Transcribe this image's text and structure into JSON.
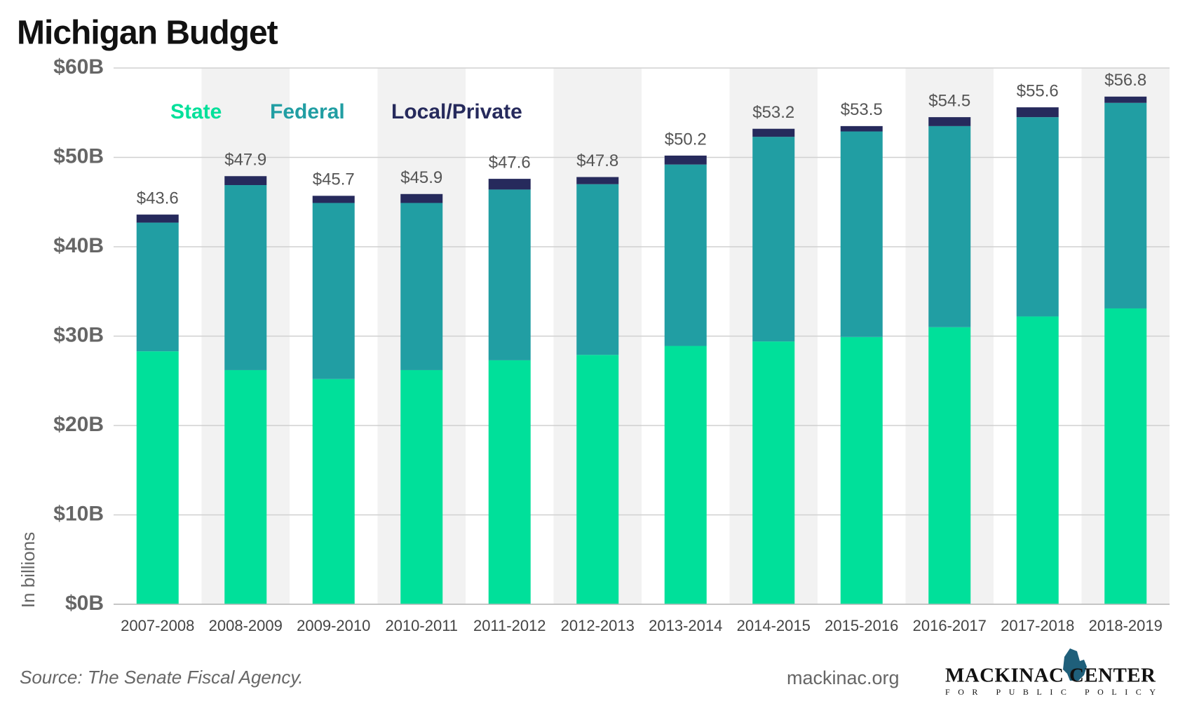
{
  "chart_data": {
    "type": "stacked-bar",
    "title": "Michigan Budget",
    "ylabel": "In billions",
    "source": "Source: The Senate Fiscal Agency.",
    "site": "mackinac.org",
    "logo": {
      "name": "MACKINAC CENTER",
      "tagline": "FOR PUBLIC POLICY"
    },
    "categories": [
      "2007-2008",
      "2008-2009",
      "2009-2010",
      "2010-2011",
      "2011-2012",
      "2012-2013",
      "2013-2014",
      "2014-2015",
      "2015-2016",
      "2016-2017",
      "2017-2018",
      "2018-2019"
    ],
    "series": [
      {
        "name": "State",
        "color": "#00e09a",
        "values": [
          28.3,
          26.2,
          25.2,
          26.2,
          27.3,
          27.9,
          28.9,
          29.4,
          29.9,
          31.0,
          32.2,
          33.1
        ]
      },
      {
        "name": "Federal",
        "color": "#219ea3",
        "values": [
          14.4,
          20.7,
          19.7,
          18.7,
          19.1,
          19.1,
          20.3,
          22.9,
          23.0,
          22.5,
          22.3,
          23.0
        ]
      },
      {
        "name": "Local/Private",
        "color": "#262a5c",
        "values": [
          0.9,
          1.0,
          0.8,
          1.0,
          1.2,
          0.8,
          1.0,
          0.9,
          0.6,
          1.0,
          1.1,
          0.7
        ]
      }
    ],
    "totals": {
      "values": [
        43.6,
        47.9,
        45.7,
        45.9,
        47.6,
        47.8,
        50.2,
        53.2,
        53.5,
        54.5,
        55.6,
        56.8
      ],
      "value_labels": [
        "$43.6",
        "$47.9",
        "$45.7",
        "$45.9",
        "$47.6",
        "$47.8",
        "$50.2",
        "$53.2",
        "$53.5",
        "$54.5",
        "$55.6",
        "$56.8"
      ]
    },
    "ylim": [
      0,
      60
    ],
    "yticks": [
      {
        "value": 0,
        "label": "$0B"
      },
      {
        "value": 10,
        "label": "$10B"
      },
      {
        "value": 20,
        "label": "$20B"
      },
      {
        "value": 30,
        "label": "$30B"
      },
      {
        "value": 40,
        "label": "$40B"
      },
      {
        "value": 50,
        "label": "$50B"
      },
      {
        "value": 60,
        "label": "$60B"
      }
    ],
    "grid": true,
    "legend": "top-left"
  }
}
